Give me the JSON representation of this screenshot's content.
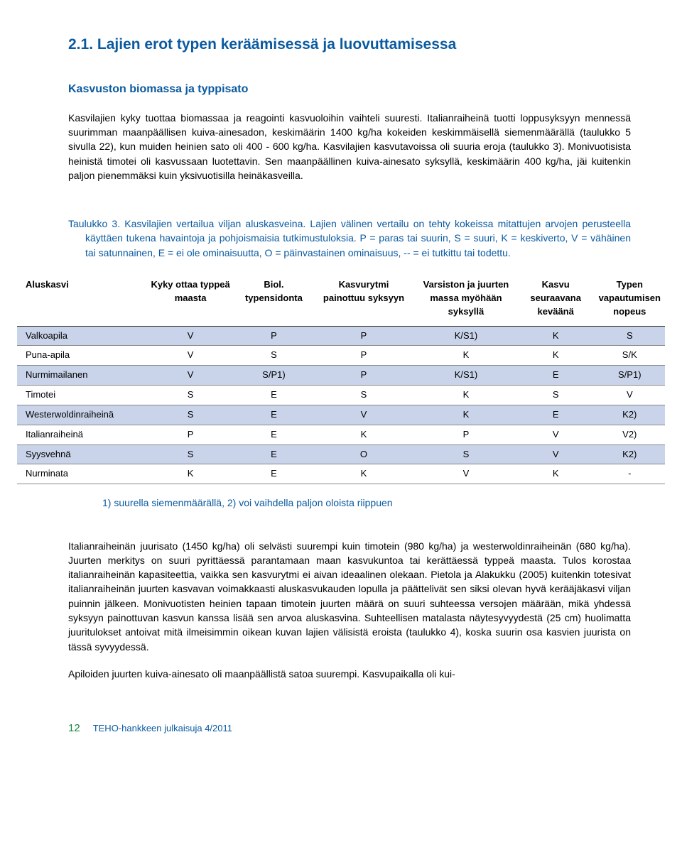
{
  "colors": {
    "heading": "#0a5aa0",
    "body": "#000000",
    "band_row": "#c9d4ea",
    "pagenum": "#1a8a3a",
    "background": "#ffffff"
  },
  "heading_main": "2.1. Lajien erot typen keräämisessä ja luovuttamisessa",
  "heading_sub": "Kasvuston biomassa ja typpisato",
  "para1": "Kasvilajien kyky tuottaa biomassaa ja reagointi kasvuoloihin vaihteli suuresti. Italianraiheinä tuotti loppusyksyyn mennessä suurimman maanpäällisen kuiva-ainesadon, keskimäärin 1400 kg/ha kokeiden keskimmäisellä siemenmäärällä (taulukko 5 sivulla 22), kun muiden heinien sato oli 400 - 600 kg/ha. Kasvilajien kasvutavoissa oli suuria eroja (taulukko 3). Monivuotisista heinistä timotei oli kasvussaan luotettavin. Sen maanpäällinen kuiva-ainesato syksyllä, keskimäärin 400 kg/ha, jäi kuitenkin paljon pienemmäksi kuin yksivuotisilla heinäkasveilla.",
  "caption": "Taulukko 3. Kasvilajien vertailua viljan aluskasveina. Lajien välinen vertailu on tehty kokeissa mitattujen arvojen perusteella käyttäen tukena havaintoja ja pohjoismaisia tutkimustuloksia. P = paras tai suurin, S = suuri, K = keskiverto, V = vähäinen tai satunnainen, E = ei ole ominaisuutta, O = päinvastainen ominaisuus, -- = ei tutkittu tai todettu.",
  "table": {
    "columns": [
      "Aluskasvi",
      "Kyky ottaa typpeä maasta",
      "Biol. typensidonta",
      "Kasvurytmi painottuu syksyyn",
      "Varsiston ja juurten massa myöhään syksyllä",
      "Kasvu seuraavana keväänä",
      "Typen vapautumisen nopeus"
    ],
    "rows": [
      {
        "band": true,
        "cells": [
          "Valkoapila",
          "V",
          "P",
          "P",
          "K/S1)",
          "K",
          "S"
        ]
      },
      {
        "band": false,
        "cells": [
          "Puna-apila",
          "V",
          "S",
          "P",
          "K",
          "K",
          "S/K"
        ]
      },
      {
        "band": true,
        "cells": [
          "Nurmimailanen",
          "V",
          "S/P1)",
          "P",
          "K/S1)",
          "E",
          "S/P1)"
        ]
      },
      {
        "band": false,
        "cells": [
          "Timotei",
          "S",
          "E",
          "S",
          "K",
          "S",
          "V"
        ]
      },
      {
        "band": true,
        "cells": [
          "Westerwoldinraiheinä",
          "S",
          "E",
          "V",
          "K",
          "E",
          "K2)"
        ]
      },
      {
        "band": false,
        "cells": [
          "Italianraiheinä",
          "P",
          "E",
          "K",
          "P",
          "V",
          "V2)"
        ]
      },
      {
        "band": true,
        "cells": [
          "Syysvehnä",
          "S",
          "E",
          "O",
          "S",
          "V",
          "K2)"
        ]
      },
      {
        "band": false,
        "cells": [
          "Nurminata",
          "K",
          "E",
          "K",
          "V",
          "K",
          "-"
        ]
      }
    ],
    "col_widths": [
      "20%",
      "14%",
      "12%",
      "16%",
      "16%",
      "12%",
      "14%"
    ]
  },
  "footnote": "1) suurella siemenmäärällä, 2) voi vaihdella paljon oloista riippuen",
  "para2": "Italianraiheinän juurisato (1450 kg/ha) oli selvästi suurempi kuin timotein (980 kg/ha) ja westerwoldinraiheinän (680 kg/ha). Juurten merkitys on suuri pyrittäessä parantamaan maan kasvukuntoa tai kerättäessä typpeä maasta. Tulos korostaa italianraiheinän kapasiteettia, vaikka sen kasvurytmi ei aivan ideaalinen olekaan. Pietola ja Alakukku (2005) kuitenkin totesivat italianraiheinän juurten kasvavan voimakkaasti aluskasvukauden lopulla ja päättelivät sen siksi olevan hyvä kerääjäkasvi viljan puinnin jälkeen. Monivuotisten heinien tapaan timotein juurten määrä on suuri suhteessa versojen määrään, mikä yhdessä syksyyn painottuvan kasvun kanssa lisää sen arvoa aluskasvina. Suhteellisen matalasta näytesyvyydestä (25 cm) huolimatta juuritulokset antoivat mitä ilmeisimmin oikean kuvan lajien välisistä eroista (taulukko 4), koska suurin osa kasvien juurista on tässä syvyydessä.",
  "para3": "Apiloiden juurten kuiva-ainesato oli maanpäällistä satoa suurempi. Kasvupaikalla oli kui-",
  "footer": {
    "pagenum": "12",
    "pubref": "TEHO-hankkeen julkaisuja 4/2011"
  }
}
